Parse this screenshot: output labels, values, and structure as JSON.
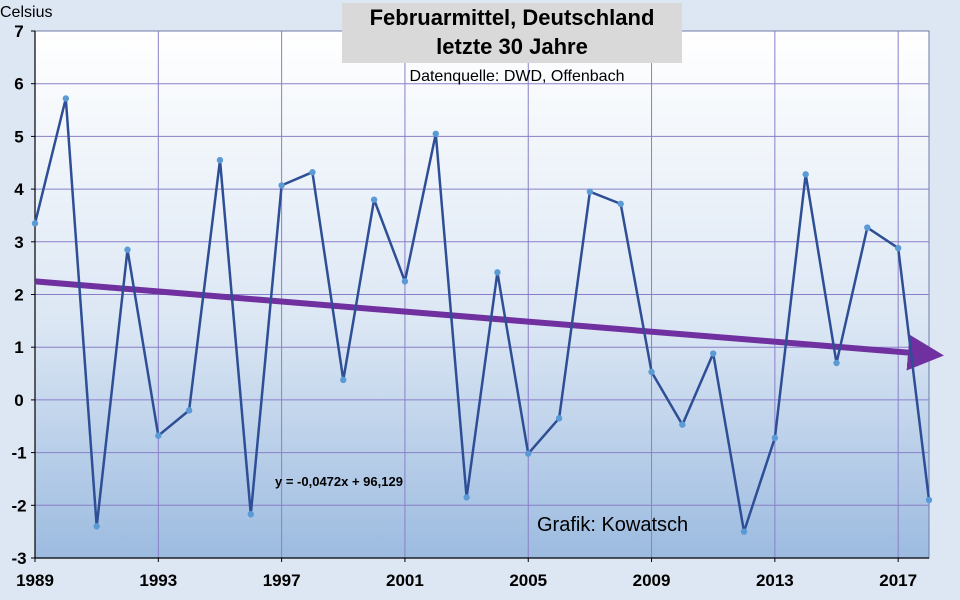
{
  "chart_data": {
    "type": "line",
    "title": "Februarmittel, Deutschland",
    "subtitle": "letzte 30 Jahre",
    "source": "Datenquelle: DWD, Offenbach",
    "ylabel": "Celsius",
    "xlabel": "",
    "ylim": [
      -3,
      7
    ],
    "xlim": [
      1989,
      2018
    ],
    "yticks": [
      "7",
      "6",
      "5",
      "4",
      "3",
      "2",
      "1",
      "0",
      "-1",
      "-2",
      "-3"
    ],
    "xticks": [
      "1989",
      "1993",
      "1997",
      "2001",
      "2005",
      "2009",
      "2013",
      "2017"
    ],
    "grid": true,
    "series": [
      {
        "name": "Februarmittel",
        "color": "#2e4f96",
        "x": [
          1989,
          1990,
          1991,
          1992,
          1993,
          1994,
          1995,
          1996,
          1997,
          1998,
          1999,
          2000,
          2001,
          2002,
          2003,
          2004,
          2005,
          2006,
          2007,
          2008,
          2009,
          2010,
          2011,
          2012,
          2013,
          2014,
          2015,
          2016,
          2017,
          2018
        ],
        "values": [
          3.35,
          5.72,
          -2.4,
          2.85,
          -0.68,
          -0.2,
          4.55,
          -2.17,
          4.07,
          4.32,
          0.38,
          3.8,
          2.25,
          5.05,
          -1.85,
          2.42,
          -1.02,
          -0.35,
          3.95,
          3.72,
          0.53,
          -0.47,
          0.88,
          -2.5,
          -0.72,
          4.28,
          0.7,
          3.27,
          2.88,
          -1.9
        ]
      }
    ],
    "trendline": {
      "equation": "y = -0,0472x + 96,129",
      "slope": -0.0472,
      "intercept": 96.129,
      "color": "#7030a0"
    },
    "annotation": "Grafik: Kowatsch"
  }
}
